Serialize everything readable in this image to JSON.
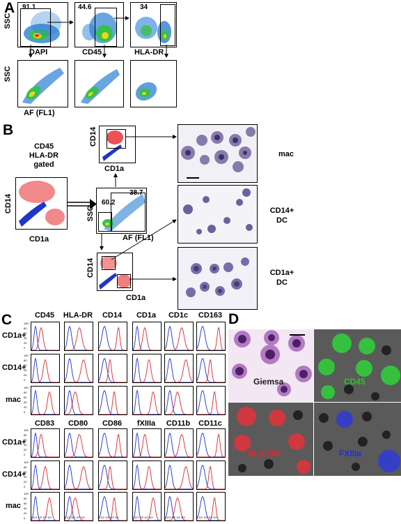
{
  "panels": {
    "A": {
      "letter": "A",
      "gate_values": [
        "91.1",
        "44.6",
        "34"
      ],
      "top_xlabels": [
        "DAPI",
        "CD45",
        "HLA-DR"
      ],
      "ylabel": "SSC",
      "bottom_xlabel": "AF (FL1)"
    },
    "B": {
      "letter": "B",
      "gated_label": [
        "CD45",
        "HLA-DR",
        "gated"
      ],
      "cd14": "CD14",
      "cd1a": "CD1a",
      "ssc": "SSC",
      "af": "AF (FL1)",
      "gate_left": "60.2",
      "gate_right": "38.7",
      "cell_labels": [
        {
          "line1": "mac",
          "line2": ""
        },
        {
          "line1": "CD14+",
          "line2": "DC"
        },
        {
          "line1": "CD1a+",
          "line2": "DC"
        }
      ]
    },
    "C": {
      "letter": "C",
      "top_columns": [
        "CD45",
        "HLA-DR",
        "CD14",
        "CD1a",
        "CD1c",
        "CD163"
      ],
      "bottom_columns": [
        "CD83",
        "CD80",
        "CD86",
        "fXIIIa",
        "CD11b",
        "CD11c"
      ],
      "rows": [
        "CD1a+",
        "CD14+",
        "mac"
      ],
      "yticks": [
        "100",
        "80",
        "60",
        "40",
        "20",
        "0"
      ],
      "xticks": "0 10¹ 10² 10³ 10⁴",
      "colors": {
        "isotype": "#1a2fd6",
        "marker": "#e0262a"
      }
    },
    "D": {
      "letter": "D",
      "quadrants": [
        "Giemsa",
        "CD45",
        "HLA-DR",
        "FXIIIa"
      ],
      "colors": {
        "giemsa": "#1a1a1a",
        "cd45": "#28c528",
        "hladr": "#e8232a",
        "fxiiia": "#2430d8"
      }
    }
  }
}
